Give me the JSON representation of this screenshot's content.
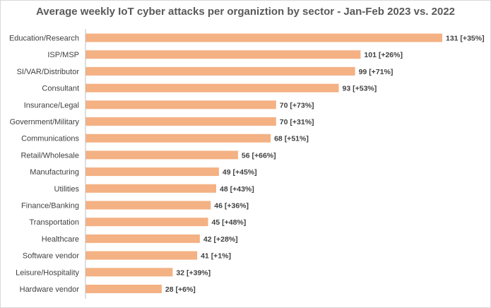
{
  "chart_data": {
    "type": "bar",
    "orientation": "horizontal",
    "title": "Average weekly IoT cyber attacks per organiztion by sector - Jan-Feb 2023 vs. 2022",
    "categories": [
      "Education/Research",
      "ISP/MSP",
      "SI/VAR/Distributor",
      "Consultant",
      "Insurance/Legal",
      "Government/Military",
      "Communications",
      "Retail/Wholesale",
      "Manufacturing",
      "Utilities",
      "Finance/Banking",
      "Transportation",
      "Healthcare",
      "Software vendor",
      "Leisure/Hospitality",
      "Hardware vendor"
    ],
    "values": [
      131,
      101,
      99,
      93,
      70,
      70,
      68,
      56,
      49,
      48,
      46,
      45,
      42,
      41,
      32,
      28
    ],
    "data_labels": [
      "131 [+35%]",
      "101 [+26%]",
      "99 [+71%]",
      "93 [+53%]",
      "70 [+73%]",
      "70 [+31%]",
      "68 [+51%]",
      "56 [+66%]",
      "49 [+45%]",
      "48 [+43%]",
      "46 [+36%]",
      "45 [+48%]",
      "42 [+28%]",
      "41 [+1%]",
      "32 [+39%]",
      "28 [+6%]"
    ],
    "xlim": [
      0,
      131
    ],
    "grid": false,
    "legend": "none",
    "bar_color": "#f4b183",
    "axis_color": "#bfbfbf"
  }
}
